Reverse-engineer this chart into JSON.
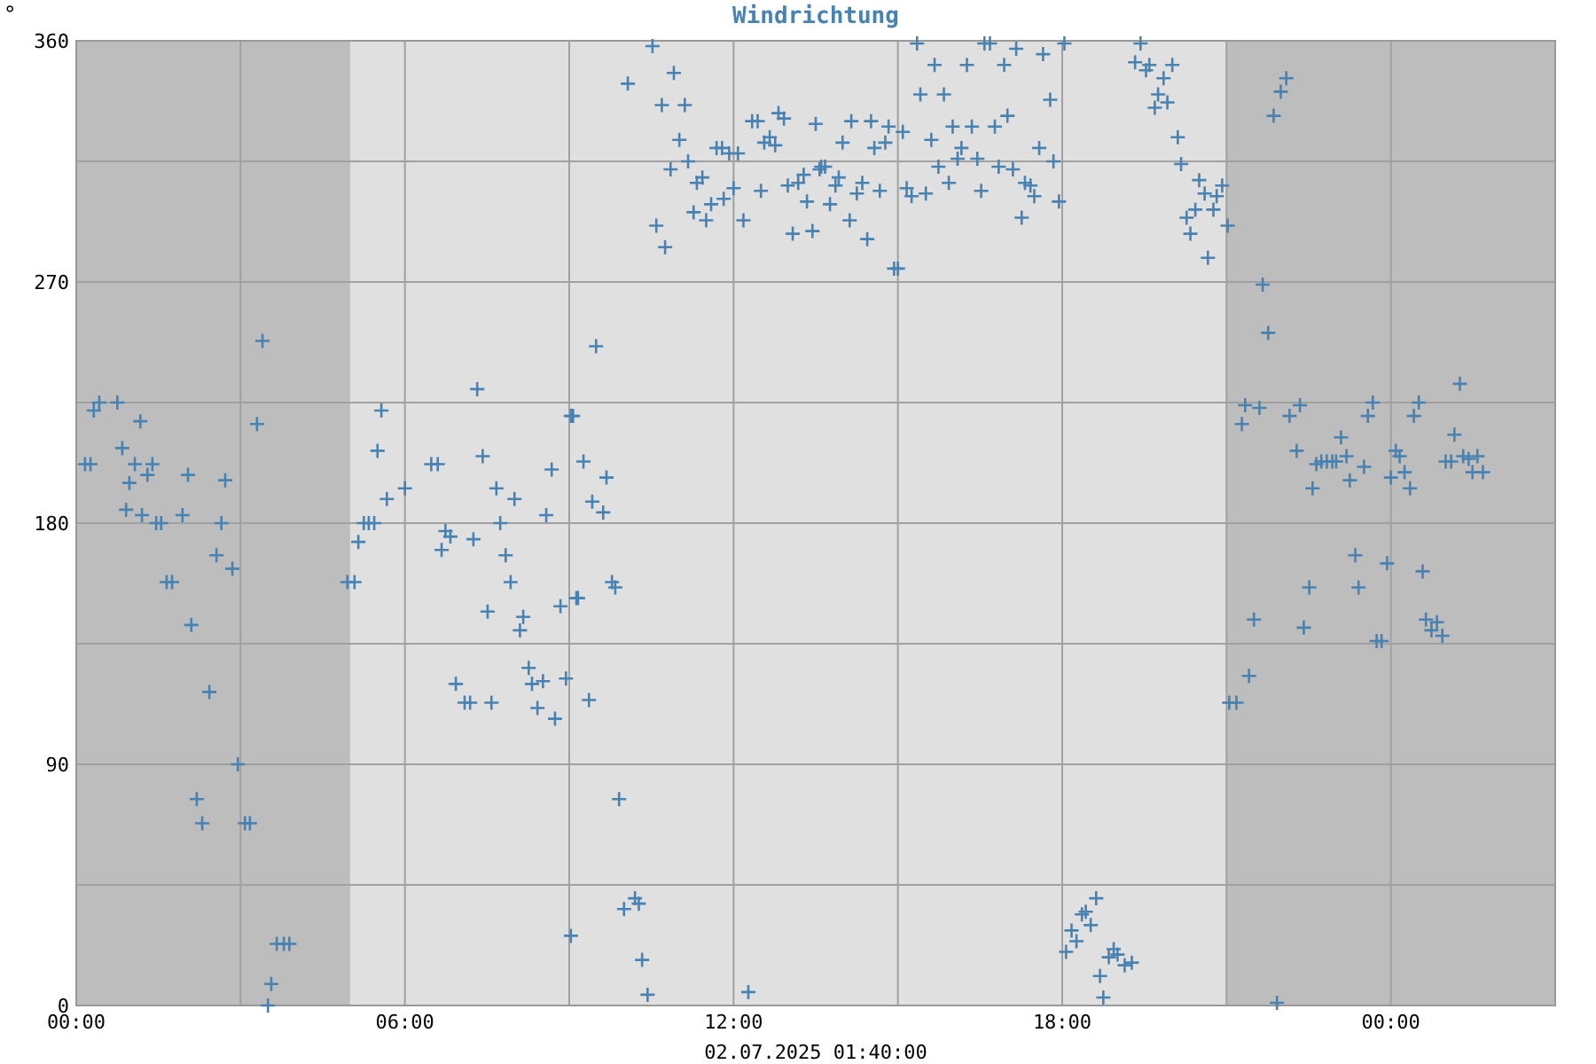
{
  "chart_data": {
    "type": "scatter",
    "title": "Windrichtung",
    "ylabel": "°",
    "xlabel": "02.07.2025 01:40:00",
    "xlim": [
      0,
      27
    ],
    "ylim": [
      0,
      360
    ],
    "xticks": [
      {
        "value": 0,
        "label": "00:00"
      },
      {
        "value": 3,
        "label": null
      },
      {
        "value": 6,
        "label": "06:00"
      },
      {
        "value": 9,
        "label": null
      },
      {
        "value": 12,
        "label": "12:00"
      },
      {
        "value": 15,
        "label": null
      },
      {
        "value": 18,
        "label": "18:00"
      },
      {
        "value": 21,
        "label": null
      },
      {
        "value": 24,
        "label": "00:00"
      }
    ],
    "yticks": [
      0,
      {
        "value": 45,
        "label": null
      },
      90,
      {
        "value": 135,
        "label": null
      },
      180,
      {
        "value": 225,
        "label": null
      },
      270,
      {
        "value": 315,
        "label": null
      },
      360
    ],
    "grid": true,
    "marker": "cross",
    "bands": [
      {
        "axis": "x",
        "from": 0,
        "to": 5,
        "color": "#bdbdbd"
      },
      {
        "axis": "x",
        "from": 21,
        "to": 27,
        "color": "#bdbdbd"
      }
    ],
    "series": [
      {
        "color": "#4682b4",
        "x": [
          0.16,
          0.26,
          0.32,
          0.42,
          0.75,
          0.84,
          0.91,
          0.97,
          1.07,
          1.17,
          1.2,
          1.3,
          1.39,
          1.46,
          1.55,
          1.65,
          1.75,
          1.94,
          2.04,
          2.1,
          2.2,
          2.3,
          2.43,
          2.56,
          2.65,
          2.72,
          2.85,
          2.95,
          3.08,
          3.17,
          3.3,
          3.4,
          3.5,
          3.56,
          3.66,
          3.79,
          3.89,
          4.95,
          5.08,
          5.15,
          5.25,
          5.34,
          5.44,
          5.5,
          5.57,
          5.67,
          6.0,
          6.48,
          6.6,
          6.67,
          6.74,
          6.83,
          6.93,
          7.09,
          7.19,
          7.25,
          7.32,
          7.42,
          7.51,
          7.58,
          7.67,
          7.74,
          7.84,
          7.93,
          8.0,
          8.1,
          8.16,
          8.26,
          8.32,
          8.42,
          8.52,
          8.58,
          8.68,
          8.74,
          8.84,
          8.94,
          9.03,
          9.03,
          9.07,
          9.13,
          9.16,
          9.26,
          9.36,
          9.42,
          9.49,
          9.62,
          9.68,
          9.78,
          9.84,
          9.91,
          10.0,
          10.2,
          10.27,
          10.33,
          10.43,
          10.07,
          10.52,
          10.59,
          10.69,
          10.75,
          10.85,
          10.91,
          11.01,
          11.11,
          11.17,
          11.27,
          11.33,
          11.43,
          11.5,
          11.59,
          11.69,
          11.79,
          11.82,
          11.92,
          12.0,
          12.08,
          12.18,
          12.27,
          12.34,
          12.44,
          12.5,
          12.56,
          12.66,
          12.76,
          12.82,
          12.92,
          12.99,
          13.08,
          13.18,
          13.28,
          13.34,
          13.44,
          13.5,
          13.57,
          13.6,
          13.67,
          13.76,
          13.86,
          13.92,
          13.99,
          14.12,
          14.15,
          14.25,
          14.35,
          14.44,
          14.51,
          14.57,
          14.67,
          14.77,
          14.83,
          14.93,
          15.0,
          15.09,
          15.16,
          15.25,
          15.35,
          15.41,
          15.51,
          15.61,
          15.67,
          15.74,
          15.84,
          15.93,
          16.0,
          16.09,
          16.16,
          16.26,
          16.35,
          16.45,
          16.52,
          16.58,
          16.68,
          16.77,
          16.84,
          16.94,
          17.0,
          17.1,
          17.16,
          17.26,
          17.32,
          17.42,
          17.49,
          17.58,
          17.65,
          17.78,
          17.84,
          17.94,
          18.04,
          18.07,
          18.17,
          18.26,
          18.36,
          18.43,
          18.52,
          18.62,
          18.69,
          18.75,
          18.85,
          18.94,
          19.01,
          19.14,
          19.27,
          19.33,
          19.43,
          19.53,
          19.59,
          19.69,
          19.75,
          19.85,
          19.92,
          20.01,
          20.11,
          20.17,
          20.27,
          20.34,
          20.43,
          20.5,
          20.6,
          20.66,
          20.76,
          20.82,
          20.92,
          21.02,
          21.05,
          21.18,
          21.28,
          21.34,
          21.41,
          21.5,
          21.6,
          21.66,
          21.76,
          21.86,
          21.92,
          21.99,
          22.09,
          22.15,
          22.28,
          22.34,
          22.41,
          22.51,
          22.57,
          22.64,
          22.73,
          22.83,
          22.93,
          23.0,
          23.09,
          23.19,
          23.25,
          23.35,
          23.41,
          23.51,
          23.58,
          23.67,
          23.74,
          23.83,
          23.93,
          24.0,
          24.09,
          24.16,
          24.25,
          24.35,
          24.42,
          24.51,
          24.58,
          24.64,
          24.74,
          24.84,
          24.94,
          25.0,
          25.1,
          25.16,
          25.26,
          25.32,
          25.42,
          25.49,
          25.58,
          25.68
        ],
        "values": [
          202,
          202,
          222,
          225,
          225,
          208,
          185,
          195,
          202,
          218,
          183,
          198,
          202,
          180,
          180,
          158,
          158,
          183,
          198,
          142,
          77,
          68,
          117,
          168,
          180,
          196,
          163,
          90,
          68,
          68,
          217,
          248,
          0,
          8,
          23,
          23,
          23,
          158,
          158,
          173,
          180,
          180,
          180,
          207,
          222,
          189,
          193,
          202,
          202,
          170,
          177,
          175,
          120,
          113,
          113,
          174,
          230,
          205,
          147,
          113,
          193,
          180,
          168,
          158,
          189,
          140,
          145,
          126,
          120,
          111,
          121,
          183,
          200,
          107,
          149,
          122,
          220,
          26,
          220,
          152,
          152,
          203,
          114,
          188,
          246,
          184,
          197,
          158,
          156,
          77,
          36,
          40,
          38,
          17,
          4,
          344,
          358,
          291,
          336,
          283,
          312,
          348,
          323,
          336,
          315,
          296,
          307,
          309,
          293,
          299,
          320,
          320,
          301,
          318,
          305,
          318,
          293,
          5,
          330,
          330,
          304,
          322,
          324,
          321,
          333,
          331,
          306,
          288,
          307,
          310,
          300,
          289,
          329,
          312,
          313,
          313,
          299,
          306,
          309,
          322,
          293,
          330,
          303,
          307,
          286,
          330,
          320,
          304,
          322,
          328,
          275,
          275,
          326,
          305,
          302,
          359,
          340,
          303,
          323,
          351,
          313,
          340,
          307,
          328,
          316,
          320,
          351,
          328,
          316,
          304,
          359,
          359,
          328,
          313,
          351,
          332,
          312,
          357,
          294,
          307,
          306,
          302,
          320,
          355,
          338,
          315,
          300,
          359,
          20,
          28,
          24,
          34,
          35,
          30,
          40,
          11,
          3,
          18,
          21,
          19,
          15,
          16,
          352,
          359,
          349,
          351,
          335,
          340,
          346,
          337,
          351,
          324,
          314,
          294,
          288,
          297,
          308,
          303,
          279,
          297,
          302,
          306,
          291,
          113,
          113,
          217,
          224,
          123,
          144,
          223,
          269,
          251,
          332,
          1,
          341,
          346,
          220,
          207,
          224,
          141,
          156,
          193,
          202,
          203,
          203,
          203,
          203,
          212,
          205,
          196,
          168,
          156,
          201,
          220,
          225,
          136,
          136,
          165,
          197,
          207,
          205,
          199,
          193,
          220,
          225,
          162,
          144,
          140,
          143,
          138,
          203,
          203,
          213,
          232,
          205,
          204,
          199,
          205,
          199
        ]
      }
    ]
  }
}
